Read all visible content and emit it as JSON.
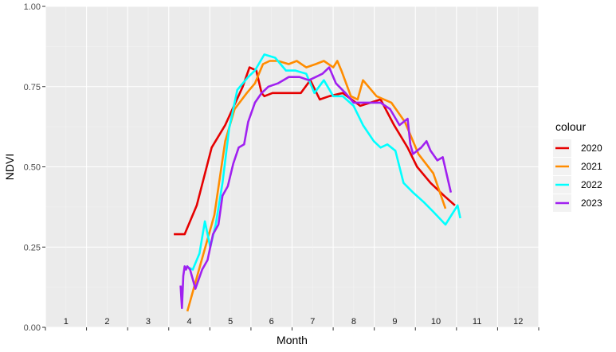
{
  "chart_data": {
    "type": "line",
    "xlabel": "Month",
    "ylabel": "NDVI",
    "xlim": [
      0,
      365
    ],
    "ylim": [
      0,
      1
    ],
    "y_ticks": [
      "0.00",
      "0.25",
      "0.50",
      "0.75",
      "1.00"
    ],
    "month_labels": [
      "1",
      "2",
      "3",
      "4",
      "5",
      "6",
      "7",
      "8",
      "9",
      "10",
      "11",
      "12"
    ],
    "grid": true,
    "legend": {
      "title": "colour",
      "position": "right"
    },
    "series": [
      {
        "name": "2020",
        "color": "#e60000",
        "x": [
          95,
          103,
          112,
          123,
          133,
          146,
          151,
          156,
          160,
          162,
          168,
          175,
          181,
          189,
          196,
          203,
          210,
          220,
          233,
          248,
          258,
          268,
          275,
          285,
          295,
          303
        ],
        "y": [
          0.29,
          0.29,
          0.38,
          0.56,
          0.63,
          0.75,
          0.81,
          0.8,
          0.73,
          0.72,
          0.73,
          0.73,
          0.73,
          0.73,
          0.77,
          0.71,
          0.72,
          0.73,
          0.69,
          0.71,
          0.63,
          0.56,
          0.5,
          0.45,
          0.41,
          0.38
        ]
      },
      {
        "name": "2021",
        "color": "#ff8c00",
        "x": [
          105,
          115,
          125,
          133,
          140,
          149,
          155,
          161,
          166,
          172,
          180,
          186,
          193,
          200,
          206,
          213,
          216,
          219,
          226,
          231,
          235,
          245,
          256,
          266,
          276,
          287,
          296
        ],
        "y": [
          0.05,
          0.2,
          0.35,
          0.58,
          0.68,
          0.73,
          0.76,
          0.82,
          0.83,
          0.83,
          0.82,
          0.83,
          0.81,
          0.82,
          0.83,
          0.81,
          0.83,
          0.8,
          0.72,
          0.71,
          0.77,
          0.72,
          0.7,
          0.64,
          0.54,
          0.48,
          0.37
        ]
      },
      {
        "name": "2022",
        "color": "#00ffff",
        "x": [
          104,
          109,
          114,
          118,
          122,
          126,
          131,
          136,
          142,
          150,
          155,
          162,
          170,
          178,
          185,
          193,
          199,
          206,
          213,
          220,
          228,
          235,
          243,
          248,
          253,
          259,
          265,
          272,
          280,
          287,
          296,
          305,
          307
        ],
        "y": [
          0.19,
          0.18,
          0.23,
          0.33,
          0.25,
          0.32,
          0.45,
          0.62,
          0.74,
          0.78,
          0.8,
          0.85,
          0.84,
          0.8,
          0.8,
          0.79,
          0.73,
          0.77,
          0.72,
          0.72,
          0.69,
          0.63,
          0.58,
          0.56,
          0.57,
          0.55,
          0.45,
          0.42,
          0.39,
          0.36,
          0.32,
          0.38,
          0.34
        ]
      },
      {
        "name": "2023",
        "color": "#a020f0",
        "x": [
          100,
          101,
          102,
          103,
          104,
          105,
          107,
          109,
          111,
          116,
          120,
          124,
          128,
          131,
          135,
          139,
          143,
          147,
          150,
          155,
          160,
          165,
          172,
          180,
          188,
          195,
          200,
          205,
          210,
          215,
          222,
          228,
          238,
          248,
          255,
          262,
          268,
          270,
          272,
          275,
          278,
          282,
          285,
          290,
          294,
          300
        ],
        "y": [
          0.13,
          0.06,
          0.16,
          0.19,
          0.18,
          0.19,
          0.18,
          0.15,
          0.12,
          0.18,
          0.21,
          0.29,
          0.32,
          0.41,
          0.44,
          0.51,
          0.56,
          0.57,
          0.64,
          0.7,
          0.73,
          0.75,
          0.76,
          0.78,
          0.78,
          0.77,
          0.78,
          0.79,
          0.81,
          0.76,
          0.73,
          0.7,
          0.7,
          0.7,
          0.68,
          0.63,
          0.65,
          0.57,
          0.54,
          0.55,
          0.56,
          0.58,
          0.55,
          0.52,
          0.53,
          0.42
        ]
      }
    ]
  }
}
